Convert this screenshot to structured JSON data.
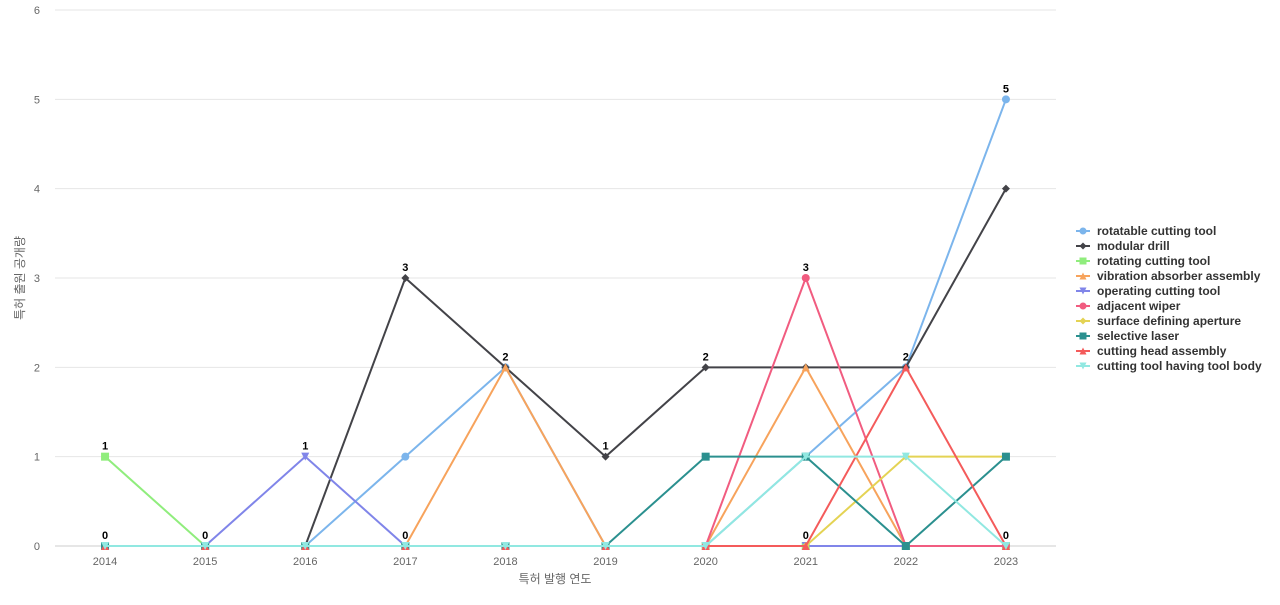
{
  "chart_data": {
    "type": "line",
    "title": "",
    "xlabel": "특허 발행 연도",
    "ylabel": "특허 출원 공개량",
    "ylim": [
      0,
      6
    ],
    "yticks": [
      0,
      1,
      2,
      3,
      4,
      5,
      6
    ],
    "categories": [
      "2014",
      "2015",
      "2016",
      "2017",
      "2018",
      "2019",
      "2020",
      "2021",
      "2022",
      "2023"
    ],
    "grid": true,
    "legend_position": "right",
    "series": [
      {
        "name": "rotatable cutting tool",
        "color": "#7cb5ec",
        "marker": "circle",
        "values": [
          0,
          0,
          0,
          1,
          2,
          0,
          0,
          1,
          2,
          5
        ]
      },
      {
        "name": "modular drill",
        "color": "#434348",
        "marker": "diamond",
        "values": [
          0,
          0,
          0,
          3,
          2,
          1,
          2,
          2,
          2,
          4
        ]
      },
      {
        "name": "rotating cutting tool",
        "color": "#90ed7d",
        "marker": "square",
        "values": [
          1,
          0,
          0,
          0,
          0,
          0,
          0,
          0,
          0,
          0
        ]
      },
      {
        "name": "vibration absorber assembly",
        "color": "#f7a35c",
        "marker": "triangle",
        "values": [
          0,
          0,
          0,
          0,
          2,
          0,
          0,
          2,
          0,
          0
        ]
      },
      {
        "name": "operating cutting tool",
        "color": "#8085e9",
        "marker": "triangle-down",
        "values": [
          0,
          0,
          1,
          0,
          0,
          0,
          0,
          0,
          0,
          0
        ]
      },
      {
        "name": "adjacent wiper",
        "color": "#f15c80",
        "marker": "circle",
        "values": [
          0,
          0,
          0,
          0,
          0,
          0,
          0,
          3,
          0,
          0
        ]
      },
      {
        "name": "surface defining aperture",
        "color": "#e4d354",
        "marker": "diamond",
        "values": [
          0,
          0,
          0,
          0,
          0,
          0,
          0,
          0,
          1,
          1
        ]
      },
      {
        "name": "selective laser",
        "color": "#2b908f",
        "marker": "square",
        "values": [
          0,
          0,
          0,
          0,
          0,
          0,
          1,
          1,
          0,
          1
        ]
      },
      {
        "name": "cutting head assembly",
        "color": "#f45b5b",
        "marker": "triangle",
        "values": [
          0,
          0,
          0,
          0,
          0,
          0,
          0,
          0,
          2,
          0
        ]
      },
      {
        "name": "cutting tool having tool body",
        "color": "#91e8e1",
        "marker": "triangle-down",
        "values": [
          0,
          0,
          0,
          0,
          0,
          0,
          0,
          1,
          1,
          0
        ]
      }
    ]
  }
}
